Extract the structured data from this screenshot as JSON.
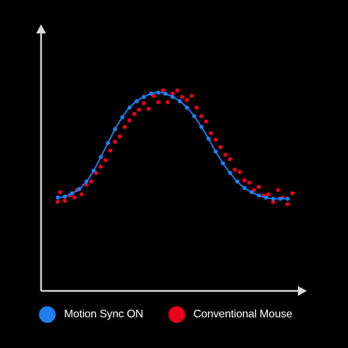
{
  "chart_data": {
    "type": "scatter",
    "title": "",
    "xlabel": "",
    "ylabel": "",
    "xlim": [
      0,
      1
    ],
    "ylim": [
      0,
      1
    ],
    "grid": false,
    "legend_position": "bottom",
    "series": [
      {
        "name": "Motion Sync ON",
        "color": "#1e7ff2",
        "style": "line-with-markers",
        "x": [
          0.02,
          0.05,
          0.08,
          0.11,
          0.14,
          0.17,
          0.2,
          0.23,
          0.26,
          0.29,
          0.32,
          0.35,
          0.38,
          0.41,
          0.44,
          0.47,
          0.5,
          0.53,
          0.56,
          0.59,
          0.62,
          0.65,
          0.68,
          0.71,
          0.74,
          0.77,
          0.8,
          0.83,
          0.86,
          0.89,
          0.92,
          0.95,
          0.98
        ],
        "values": [
          0.02,
          0.03,
          0.06,
          0.1,
          0.17,
          0.27,
          0.4,
          0.53,
          0.66,
          0.77,
          0.86,
          0.92,
          0.96,
          0.99,
          1.0,
          0.99,
          0.96,
          0.92,
          0.86,
          0.78,
          0.68,
          0.57,
          0.45,
          0.34,
          0.25,
          0.17,
          0.11,
          0.07,
          0.04,
          0.02,
          0.01,
          0.01,
          0.01
        ]
      },
      {
        "name": "Conventional Mouse",
        "color": "#e8001c",
        "style": "markers",
        "x": [
          0.02,
          0.03,
          0.05,
          0.07,
          0.09,
          0.1,
          0.12,
          0.14,
          0.16,
          0.18,
          0.2,
          0.22,
          0.24,
          0.26,
          0.28,
          0.3,
          0.32,
          0.34,
          0.36,
          0.38,
          0.4,
          0.42,
          0.44,
          0.46,
          0.48,
          0.5,
          0.52,
          0.54,
          0.56,
          0.58,
          0.6,
          0.62,
          0.64,
          0.66,
          0.68,
          0.7,
          0.72,
          0.74,
          0.76,
          0.78,
          0.8,
          0.82,
          0.84,
          0.86,
          0.88,
          0.9,
          0.92,
          0.94,
          0.96,
          0.98,
          1.0
        ],
        "values": [
          -0.02,
          0.07,
          -0.01,
          0.04,
          0.02,
          0.09,
          0.05,
          0.14,
          0.17,
          0.25,
          0.31,
          0.37,
          0.46,
          0.54,
          0.59,
          0.68,
          0.74,
          0.8,
          0.84,
          0.9,
          0.85,
          0.97,
          0.91,
          1.02,
          0.91,
          0.99,
          1.02,
          0.96,
          0.93,
          0.97,
          0.86,
          0.78,
          0.73,
          0.62,
          0.56,
          0.49,
          0.42,
          0.38,
          0.28,
          0.26,
          0.18,
          0.16,
          0.09,
          0.12,
          0.04,
          0.05,
          -0.02,
          0.09,
          0.02,
          -0.04,
          0.06
        ]
      }
    ]
  },
  "legend": {
    "items": [
      {
        "label": "Motion Sync ON",
        "color": "#1e7ff2"
      },
      {
        "label": "Conventional Mouse",
        "color": "#e8001c"
      }
    ]
  },
  "colors": {
    "background": "#000000",
    "axis": "#d9d9d9",
    "text": "#ffffff"
  }
}
